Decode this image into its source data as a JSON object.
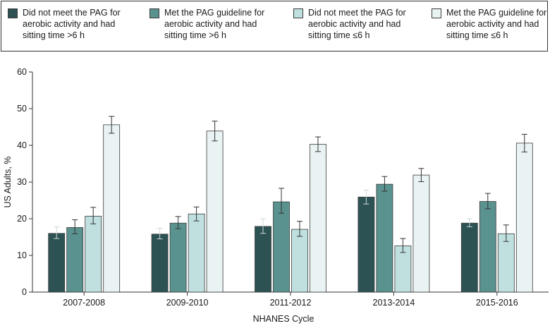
{
  "chart_data": {
    "type": "bar",
    "title": "",
    "xlabel": "NHANES Cycle",
    "ylabel": "US Adults, %",
    "ylim": [
      0,
      60
    ],
    "yticks": [
      0,
      10,
      20,
      30,
      40,
      50,
      60
    ],
    "grid": false,
    "error_bars": true,
    "legend_position": "top",
    "categories": [
      "2007-2008",
      "2009-2010",
      "2011-2012",
      "2013-2014",
      "2015-2016"
    ],
    "series": [
      {
        "name": "Did not meet the PAG for aerobic activity and had sitting time >6 h",
        "color": "#2c5253",
        "values": [
          16.0,
          15.8,
          17.9,
          25.9,
          18.8
        ],
        "err_low": [
          14.6,
          14.5,
          16.0,
          24.0,
          17.8
        ],
        "err_high": [
          17.8,
          17.4,
          20.0,
          27.8,
          20.0
        ]
      },
      {
        "name": "Met the PAG guideline for aerobic activity and had sitting time >6 h",
        "color": "#5a928f",
        "values": [
          17.6,
          18.8,
          24.6,
          29.4,
          24.7
        ],
        "err_low": [
          15.9,
          17.3,
          21.5,
          27.5,
          22.7
        ],
        "err_high": [
          19.7,
          20.6,
          28.3,
          31.5,
          26.9
        ]
      },
      {
        "name": "Did not meet the PAG for aerobic activity and had sitting time ≤6 h",
        "color": "#bfe0df",
        "values": [
          20.7,
          21.3,
          17.1,
          12.6,
          15.9
        ],
        "err_low": [
          18.6,
          19.4,
          15.2,
          10.8,
          13.8
        ],
        "err_high": [
          23.1,
          23.2,
          19.3,
          14.6,
          18.3
        ]
      },
      {
        "name": "Met the PAG guideline for aerobic activity and had sitting time ≤6 h",
        "color": "#e9f3f3",
        "values": [
          45.6,
          43.9,
          40.3,
          31.9,
          40.6
        ],
        "err_low": [
          43.3,
          41.2,
          38.3,
          30.1,
          38.2
        ],
        "err_high": [
          47.9,
          46.6,
          42.3,
          33.7,
          43.0
        ]
      }
    ]
  }
}
